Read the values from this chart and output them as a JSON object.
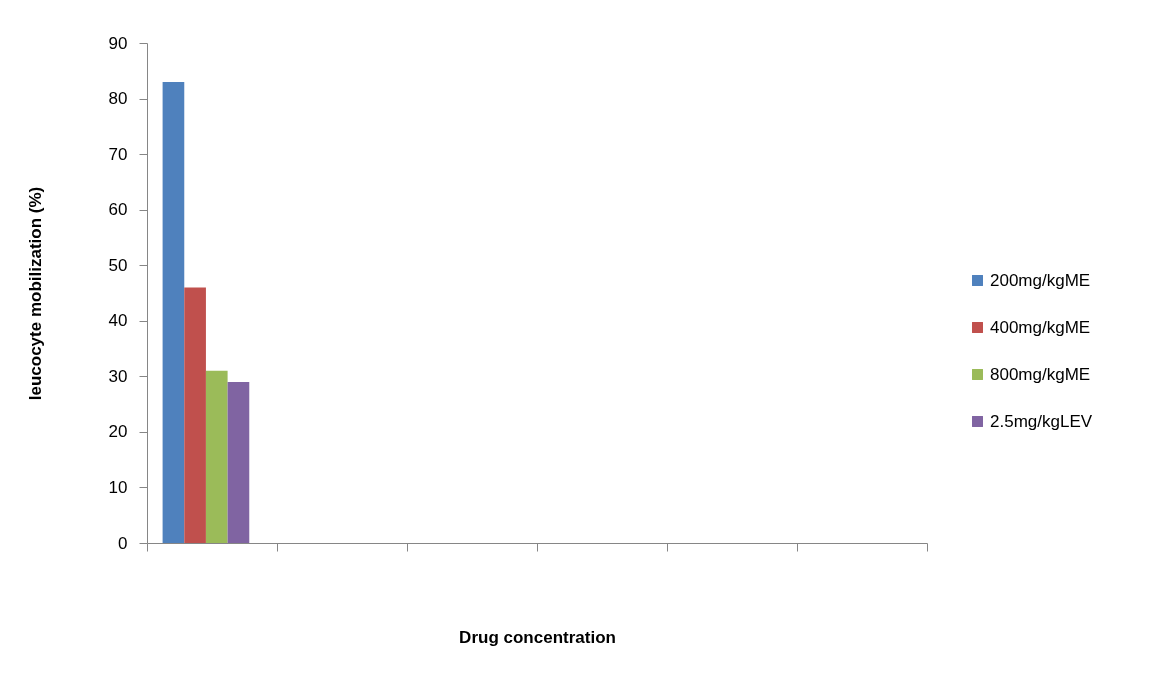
{
  "chart_data": {
    "type": "bar",
    "xlabel": "Drug concentration",
    "ylabel": "leucocyte mobilization (%)",
    "categories": [
      null,
      null,
      null,
      null,
      null,
      null
    ],
    "series": [
      {
        "name": "200mg/kgME",
        "color": "#4f81bd",
        "values": [
          83,
          null,
          null,
          null,
          null,
          null
        ]
      },
      {
        "name": "400mg/kgME",
        "color": "#c0504d",
        "values": [
          46,
          null,
          null,
          null,
          null,
          null
        ]
      },
      {
        "name": "800mg/kgME",
        "color": "#9bbb59",
        "values": [
          31,
          null,
          null,
          null,
          null,
          null
        ]
      },
      {
        "name": "2.5mg/kgLEV",
        "color": "#8064a2",
        "values": [
          29,
          null,
          null,
          null,
          null,
          null
        ]
      }
    ],
    "ylim": [
      0,
      90
    ],
    "yticks": [
      0,
      10,
      20,
      30,
      40,
      50,
      60,
      70,
      80,
      90
    ],
    "legend": "right",
    "tick_labels": "y"
  }
}
